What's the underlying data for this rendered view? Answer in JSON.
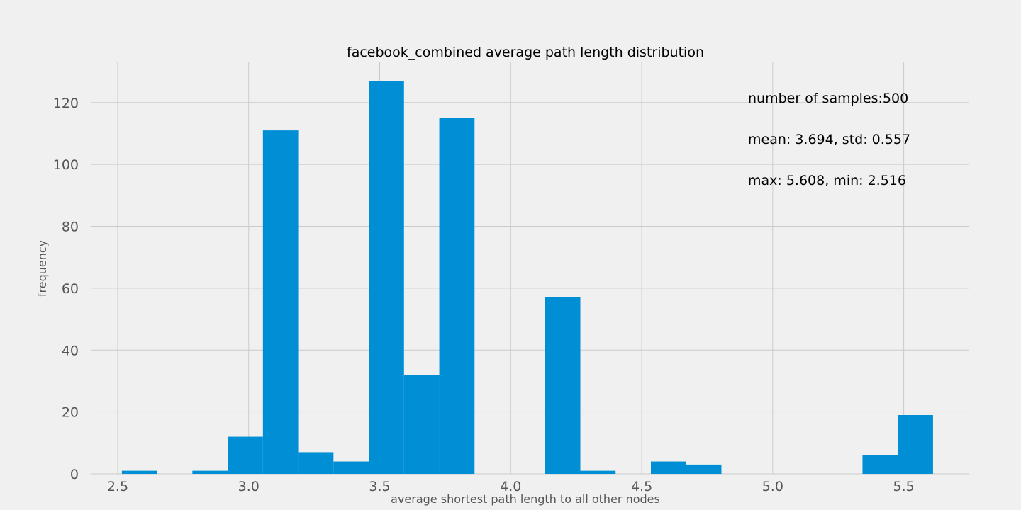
{
  "chart_data": {
    "type": "bar",
    "title": "facebook_combined average path length distribution",
    "xlabel": "average shortest path length to all other nodes",
    "ylabel": "frequency",
    "xlim": [
      2.4,
      5.75
    ],
    "ylim": [
      0,
      133
    ],
    "xticks": [
      2.5,
      3.0,
      3.5,
      4.0,
      4.5,
      5.0,
      5.5
    ],
    "xtick_labels": [
      "2.5",
      "3.0",
      "3.5",
      "4.0",
      "4.5",
      "5.0",
      "5.5"
    ],
    "yticks": [
      0,
      20,
      40,
      60,
      80,
      100,
      120
    ],
    "ytick_labels": [
      "0",
      "20",
      "40",
      "60",
      "80",
      "100",
      "120"
    ],
    "grid": true,
    "bar_color": "#008fd5",
    "background": "#f0f0f0",
    "bin_start": 2.516,
    "bin_width": 0.1346,
    "values": [
      1,
      0,
      1,
      12,
      111,
      7,
      4,
      127,
      32,
      115,
      0,
      0,
      57,
      1,
      0,
      4,
      3,
      0,
      0,
      0,
      0,
      6,
      19
    ],
    "annotations": [
      "number of samples:500",
      "mean: 3.694, std: 0.557",
      "max: 5.608, min: 2.516"
    ]
  }
}
